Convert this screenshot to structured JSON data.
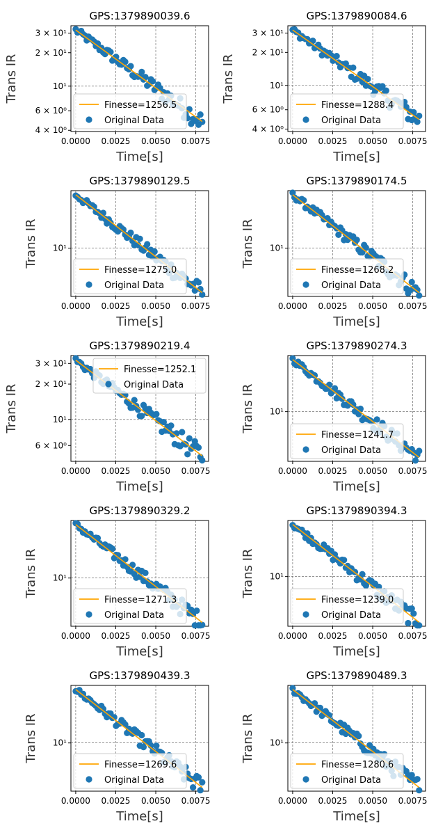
{
  "figure": {
    "ylabel": "Trans IR",
    "xlabel": "Time[s]",
    "xticks": [
      "0.0000",
      "0.0025",
      "0.0050",
      "0.0075"
    ],
    "fit_label_prefix": "Finesse=",
    "data_label": "Original Data",
    "fit_color": "#ffa500",
    "data_color": "#1f77b4",
    "grid_color": "#555555"
  },
  "chart_data": [
    {
      "type": "scatter",
      "title": "GPS:1379890039.6",
      "finesse": "1256.5",
      "y0": 32,
      "y_end": 4.8,
      "yscale": "log",
      "ylim": [
        3.9,
        35
      ],
      "x_range": [
        0,
        0.0079
      ],
      "yticks": [
        {
          "v": 30,
          "t": "3 × 10¹"
        },
        {
          "v": 20,
          "t": "2 × 10¹"
        },
        {
          "v": 10,
          "t": "10¹"
        },
        {
          "v": 6,
          "t": "6 × 10⁰"
        },
        {
          "v": 4,
          "t": "4 × 10⁰"
        }
      ],
      "legend": "bottom-left",
      "xlabel": "Time[s]",
      "ylabel": "Trans IR"
    },
    {
      "type": "scatter",
      "title": "GPS:1379890084.6",
      "finesse": "1288.4",
      "y0": 32,
      "y_end": 4.9,
      "yscale": "log",
      "ylim": [
        3.8,
        35
      ],
      "x_range": [
        0,
        0.0079
      ],
      "yticks": [
        {
          "v": 30,
          "t": "3 × 10¹"
        },
        {
          "v": 20,
          "t": "2 × 10¹"
        },
        {
          "v": 10,
          "t": "10¹"
        },
        {
          "v": 6,
          "t": "6 × 10⁰"
        },
        {
          "v": 4,
          "t": "4 × 10⁰"
        }
      ],
      "legend": "bottom-left",
      "xlabel": "Time[s]",
      "ylabel": "Trans IR"
    },
    {
      "type": "scatter",
      "title": "GPS:1379890129.5",
      "finesse": "1275.0",
      "y0": 32,
      "y_end": 3.8,
      "yscale": "log",
      "ylim": [
        3.5,
        35
      ],
      "x_range": [
        0,
        0.0079
      ],
      "yticks": [
        {
          "v": 10,
          "t": "10¹"
        }
      ],
      "legend": "bottom-left",
      "xlabel": "Time[s]",
      "ylabel": "Trans IR"
    },
    {
      "type": "scatter",
      "title": "GPS:1379890174.5",
      "finesse": "1268.2",
      "y0": 32,
      "y_end": 3.8,
      "yscale": "log",
      "ylim": [
        3.5,
        35
      ],
      "x_range": [
        0,
        0.0079
      ],
      "yticks": [
        {
          "v": 10,
          "t": "10¹"
        }
      ],
      "legend": "bottom-left",
      "xlabel": "Time[s]",
      "ylabel": "Trans IR"
    },
    {
      "type": "scatter",
      "title": "GPS:1379890219.4",
      "finesse": "1252.1",
      "y0": 32,
      "y_end": 4.9,
      "yscale": "log",
      "ylim": [
        4.4,
        35
      ],
      "x_range": [
        0,
        0.0079
      ],
      "yticks": [
        {
          "v": 30,
          "t": "3 × 10¹"
        },
        {
          "v": 20,
          "t": "2 × 10¹"
        },
        {
          "v": 10,
          "t": "10¹"
        },
        {
          "v": 6,
          "t": "6 × 10⁰"
        }
      ],
      "legend": "top-right",
      "xlabel": "Time[s]",
      "ylabel": "Trans IR"
    },
    {
      "type": "scatter",
      "title": "GPS:1379890274.3",
      "finesse": "1241.7",
      "y0": 32,
      "y_end": 3.6,
      "yscale": "log",
      "ylim": [
        3.3,
        35
      ],
      "x_range": [
        0,
        0.0079
      ],
      "yticks": [
        {
          "v": 10,
          "t": "10¹"
        }
      ],
      "legend": "bottom-left",
      "xlabel": "Time[s]",
      "ylabel": "Trans IR"
    },
    {
      "type": "scatter",
      "title": "GPS:1379890329.2",
      "finesse": "1271.3",
      "y0": 32,
      "y_end": 3.8,
      "yscale": "log",
      "ylim": [
        3.5,
        35
      ],
      "x_range": [
        0,
        0.0079
      ],
      "yticks": [
        {
          "v": 10,
          "t": "10¹"
        }
      ],
      "legend": "bottom-left",
      "xlabel": "Time[s]",
      "ylabel": "Trans IR"
    },
    {
      "type": "scatter",
      "title": "GPS:1379890394.3",
      "finesse": "1239.0",
      "y0": 32,
      "y_end": 3.6,
      "yscale": "log",
      "ylim": [
        3.3,
        35
      ],
      "x_range": [
        0,
        0.0079
      ],
      "yticks": [
        {
          "v": 10,
          "t": "10¹"
        }
      ],
      "legend": "bottom-left",
      "xlabel": "Time[s]",
      "ylabel": "Trans IR"
    },
    {
      "type": "scatter",
      "title": "GPS:1379890439.3",
      "finesse": "1269.6",
      "y0": 32,
      "y_end": 3.8,
      "yscale": "log",
      "ylim": [
        3.5,
        35
      ],
      "x_range": [
        0,
        0.0079
      ],
      "yticks": [
        {
          "v": 10,
          "t": "10¹"
        }
      ],
      "legend": "bottom-left",
      "xlabel": "Time[s]",
      "ylabel": "Trans IR"
    },
    {
      "type": "scatter",
      "title": "GPS:1379890489.3",
      "finesse": "1280.6",
      "y0": 32,
      "y_end": 3.8,
      "yscale": "log",
      "ylim": [
        3.5,
        35
      ],
      "x_range": [
        0,
        0.0079
      ],
      "yticks": [
        {
          "v": 10,
          "t": "10¹"
        }
      ],
      "legend": "bottom-left",
      "xlabel": "Time[s]",
      "ylabel": "Trans IR"
    }
  ]
}
